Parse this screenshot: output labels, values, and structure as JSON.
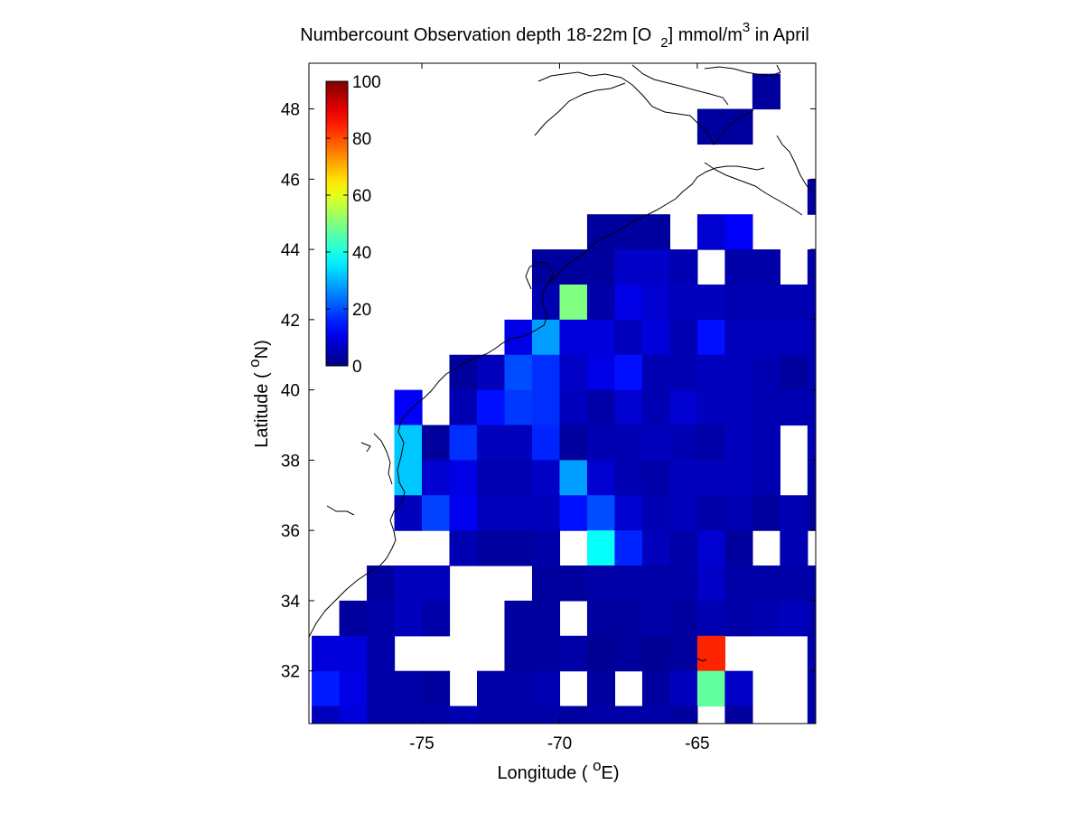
{
  "chart_data": {
    "type": "heatmap",
    "title": {
      "main": "Numbercount Observation depth 18-22m [O",
      "sub": "2",
      "mid": "] mmol/m",
      "sup": "3",
      "end": " in April"
    },
    "xlabel": {
      "pre": "Longitude ( ",
      "sup": "o",
      "post": "E)"
    },
    "ylabel": {
      "pre": "Latitude ( ",
      "sup": "o",
      "post": "N)"
    },
    "xlim": [
      -79.1,
      -60.7
    ],
    "ylim": [
      30.5,
      49.3
    ],
    "x_ticks": [
      -75,
      -70,
      -65
    ],
    "x_tick_labels": [
      "-75",
      "-70",
      "-65"
    ],
    "y_ticks": [
      32,
      34,
      36,
      38,
      40,
      42,
      44,
      46,
      48
    ],
    "y_tick_labels": [
      "32",
      "34",
      "36",
      "38",
      "40",
      "42",
      "44",
      "46",
      "48"
    ],
    "colorbar": {
      "colormap": "jet",
      "range": [
        0,
        100
      ],
      "ticks": [
        0,
        20,
        40,
        60,
        80,
        100
      ],
      "tick_labels": [
        "0",
        "20",
        "40",
        "60",
        "80",
        "100"
      ]
    },
    "grid": {
      "lon_edges": [
        -79.0,
        -78.0,
        -77.0,
        -76.0,
        -75.0,
        -74.0,
        -73.0,
        -72.0,
        -71.0,
        -70.0,
        -69.0,
        -68.0,
        -67.0,
        -66.0,
        -65.0,
        -64.0,
        -63.0,
        -62.0,
        -61.0,
        -60.7
      ],
      "lat_rows_from_top": [
        [
          48.0,
          49.0
        ],
        [
          47.0,
          48.0
        ],
        [
          45.0,
          46.0
        ],
        [
          44.0,
          45.0
        ],
        [
          43.0,
          44.0
        ],
        [
          42.0,
          43.0
        ],
        [
          41.0,
          42.0
        ],
        [
          40.0,
          41.0
        ],
        [
          39.0,
          40.0
        ],
        [
          38.0,
          39.0
        ],
        [
          37.0,
          38.0
        ],
        [
          36.0,
          37.0
        ],
        [
          35.0,
          36.0
        ],
        [
          34.0,
          35.0
        ],
        [
          33.0,
          34.0
        ],
        [
          32.0,
          33.0
        ],
        [
          31.0,
          32.0
        ],
        [
          30.5,
          31.0
        ]
      ],
      "values_from_top": [
        [
          null,
          null,
          null,
          null,
          null,
          null,
          null,
          null,
          null,
          null,
          null,
          null,
          null,
          null,
          null,
          null,
          3,
          null,
          null
        ],
        [
          null,
          null,
          null,
          null,
          null,
          null,
          null,
          null,
          null,
          null,
          null,
          null,
          null,
          null,
          3,
          3,
          null,
          null,
          null
        ],
        [
          null,
          null,
          null,
          null,
          null,
          null,
          null,
          null,
          null,
          null,
          null,
          null,
          null,
          null,
          null,
          null,
          null,
          null,
          3
        ],
        [
          null,
          null,
          null,
          null,
          null,
          null,
          null,
          null,
          null,
          null,
          3,
          3,
          3,
          null,
          8,
          12,
          null,
          null,
          null
        ],
        [
          null,
          null,
          null,
          null,
          null,
          null,
          null,
          null,
          3,
          3,
          3,
          7,
          7,
          5,
          null,
          4,
          4,
          null,
          4
        ],
        [
          null,
          null,
          null,
          null,
          null,
          null,
          null,
          null,
          5,
          50,
          4,
          10,
          8,
          6,
          6,
          5,
          5,
          5,
          5
        ],
        [
          null,
          null,
          null,
          null,
          null,
          null,
          null,
          10,
          28,
          9,
          9,
          6,
          9,
          5,
          14,
          6,
          6,
          6,
          5
        ],
        [
          null,
          null,
          null,
          null,
          null,
          3,
          6,
          20,
          17,
          7,
          10,
          14,
          5,
          5,
          6,
          6,
          5,
          3,
          5
        ],
        [
          null,
          null,
          null,
          12,
          null,
          5,
          14,
          18,
          17,
          6,
          4,
          8,
          5,
          8,
          6,
          6,
          5,
          5,
          5
        ],
        [
          null,
          null,
          null,
          32,
          3,
          17,
          6,
          6,
          16,
          3,
          5,
          5,
          6,
          5,
          4,
          6,
          5,
          null,
          5
        ],
        [
          null,
          null,
          null,
          32,
          8,
          10,
          5,
          5,
          7,
          28,
          8,
          5,
          4,
          6,
          6,
          6,
          5,
          null,
          4
        ],
        [
          null,
          null,
          null,
          6,
          19,
          11,
          6,
          6,
          6,
          14,
          20,
          8,
          5,
          6,
          4,
          5,
          3,
          5,
          3
        ],
        [
          null,
          null,
          null,
          null,
          null,
          5,
          3,
          3,
          4,
          null,
          38,
          16,
          6,
          4,
          8,
          3,
          null,
          5,
          null
        ],
        [
          null,
          null,
          3,
          6,
          6,
          null,
          null,
          null,
          3,
          3,
          4,
          4,
          4,
          4,
          7,
          4,
          4,
          4,
          4
        ],
        [
          null,
          3,
          4,
          6,
          4,
          null,
          null,
          3,
          3,
          null,
          3,
          3,
          4,
          3,
          5,
          4,
          5,
          6,
          4
        ],
        [
          9,
          9,
          4,
          null,
          null,
          null,
          null,
          3,
          3,
          4,
          2,
          3,
          2,
          3,
          84,
          null,
          null,
          null,
          4
        ],
        [
          15,
          10,
          4,
          4,
          3,
          null,
          4,
          4,
          5,
          null,
          3,
          null,
          3,
          6,
          47,
          7,
          null,
          null,
          4
        ],
        [
          6,
          9,
          4,
          4,
          4,
          5,
          4,
          4,
          4,
          3,
          4,
          4,
          4,
          3,
          null,
          3,
          null,
          null,
          4
        ]
      ]
    }
  }
}
